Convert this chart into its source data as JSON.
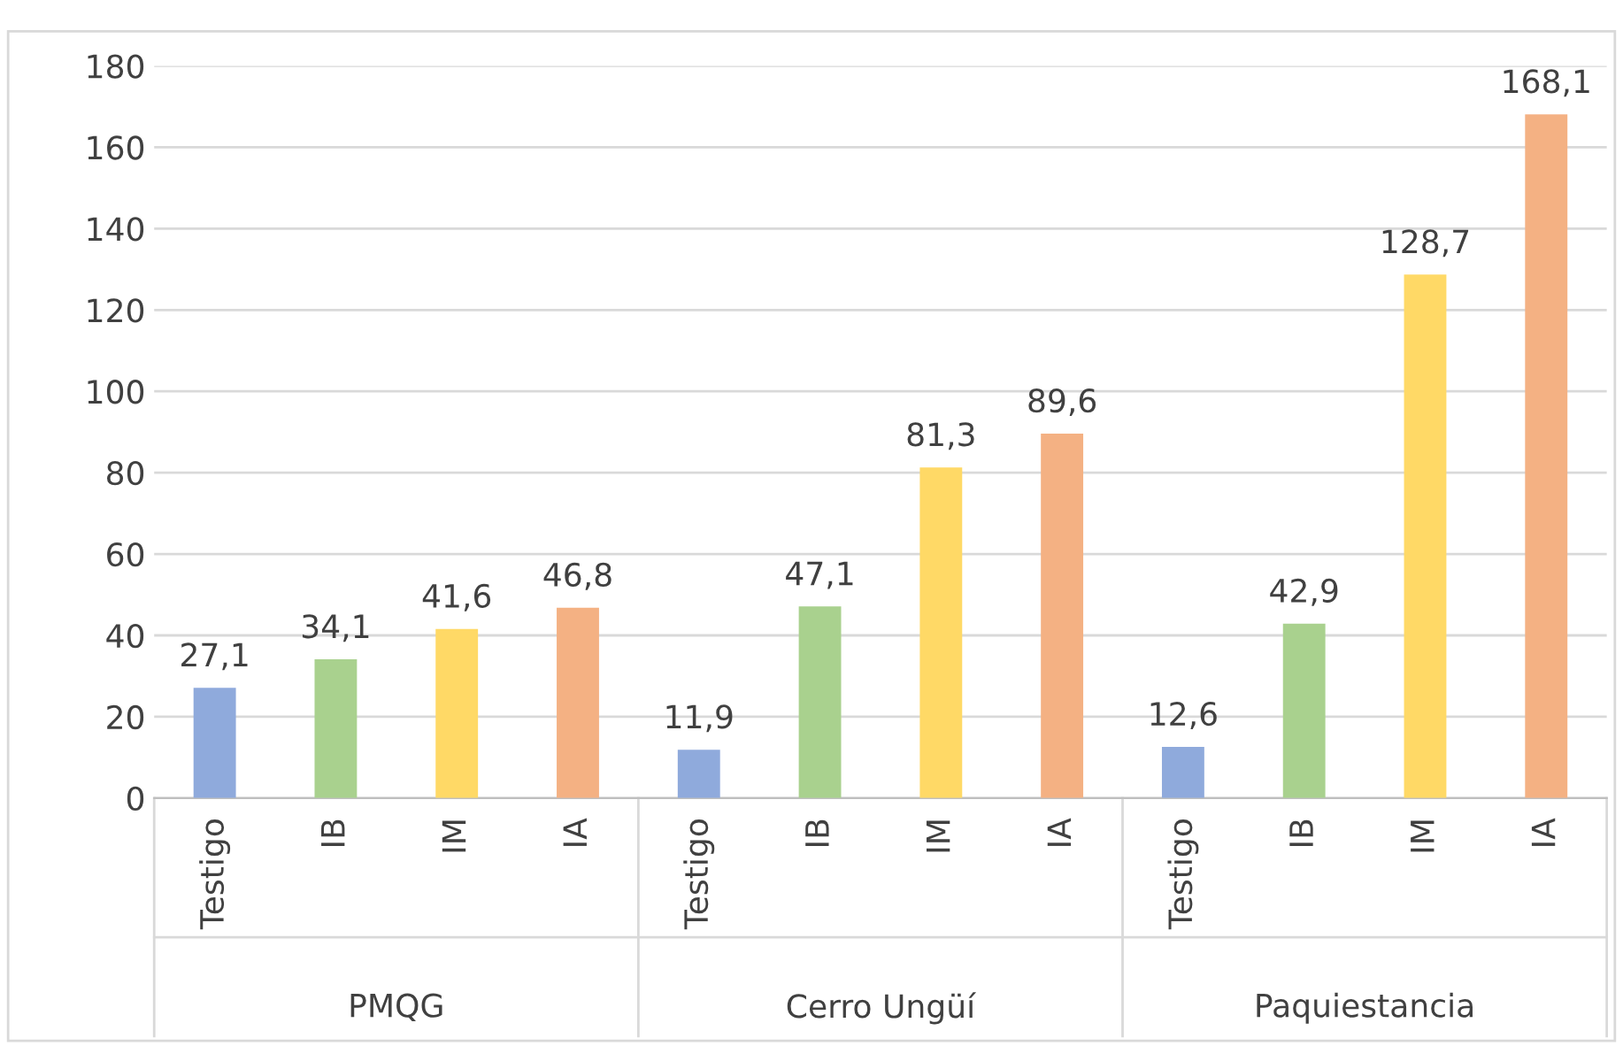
{
  "chart_data": {
    "type": "bar",
    "categories": [
      "Testigo",
      "IB",
      "IM",
      "IA",
      "Testigo",
      "IB",
      "IM",
      "IA",
      "Testigo",
      "IB",
      "IM",
      "IA"
    ],
    "values": [
      27.1,
      34.1,
      41.6,
      46.8,
      11.9,
      47.1,
      81.3,
      89.6,
      12.6,
      42.9,
      128.7,
      168.1
    ],
    "colors": [
      "#8faadc",
      "#a9d18e",
      "#ffd966",
      "#f4b183",
      "#8faadc",
      "#a9d18e",
      "#ffd966",
      "#f4b183",
      "#8faadc",
      "#a9d18e",
      "#ffd966",
      "#f4b183"
    ],
    "value_labels": [
      "27,1",
      "34,1",
      "41,6",
      "46,8",
      "11,9",
      "47,1",
      "81,3",
      "89,6",
      "12,6",
      "42,9",
      "128,7",
      "168,1"
    ],
    "annotations": [
      "PMQG",
      "Cerro Ungüí",
      "Paquiestancia"
    ],
    "ylim": [
      0,
      180
    ],
    "yticks": [
      0,
      20,
      40,
      60,
      80,
      100,
      120,
      140,
      160,
      180
    ],
    "grid": "y",
    "legend": false
  }
}
